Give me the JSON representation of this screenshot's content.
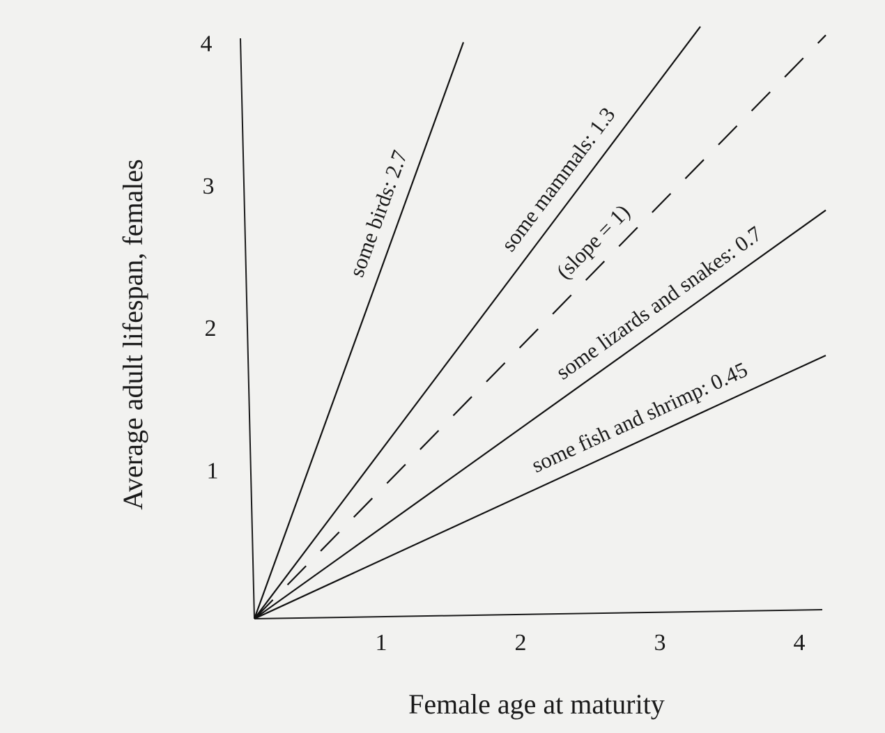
{
  "chart_data": {
    "type": "line",
    "xlabel": "Female age at maturity",
    "ylabel": "Average adult lifespan, females",
    "xlim": [
      0,
      4.2
    ],
    "ylim": [
      0,
      4.2
    ],
    "xticks": [
      1,
      2,
      3,
      4
    ],
    "yticks": [
      1,
      2,
      3,
      4
    ],
    "grid": false,
    "series": [
      {
        "name": "some birds: 2.7",
        "color": "#111111",
        "style": "solid",
        "x": [
          0,
          1.5
        ],
        "values": [
          0,
          4.05
        ]
      },
      {
        "name": "some mammals: 1.3",
        "color": "#111111",
        "style": "solid",
        "x": [
          0,
          3.2
        ],
        "values": [
          0,
          4.16
        ]
      },
      {
        "name": "(slope = 1)",
        "color": "#111111",
        "style": "dashed",
        "x": [
          0,
          4.1
        ],
        "values": [
          0,
          4.1
        ]
      },
      {
        "name": "some lizards and snakes: 0.7",
        "color": "#111111",
        "style": "solid",
        "x": [
          0,
          4.1
        ],
        "values": [
          0,
          2.87
        ]
      },
      {
        "name": "some fish and shrimp: 0.45",
        "color": "#111111",
        "style": "solid",
        "x": [
          0,
          4.1
        ],
        "values": [
          0,
          1.85
        ]
      }
    ]
  }
}
